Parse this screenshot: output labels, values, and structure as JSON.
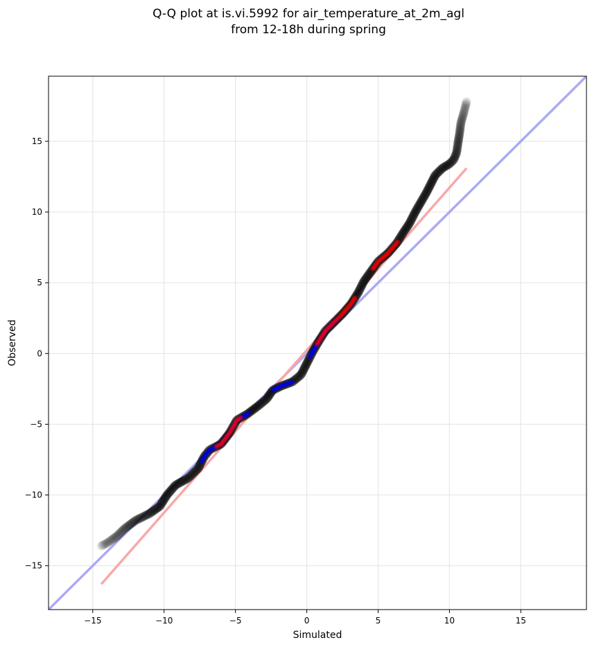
{
  "chart_data": {
    "type": "scatter",
    "title": "Q-Q plot at is.vi.5992 for air_temperature_at_2m_agl",
    "subtitle": "from 12-18h during spring",
    "xlabel": "Simulated",
    "ylabel": "Observed",
    "xlim": [
      -18.1,
      19.6
    ],
    "ylim": [
      -18.1,
      19.6
    ],
    "xticks": [
      -15,
      -10,
      -5,
      0,
      5,
      10,
      15
    ],
    "yticks": [
      -15,
      -10,
      -5,
      0,
      5,
      10,
      15
    ],
    "x_tick_labels": [
      "−15",
      "−10",
      "−5",
      "0",
      "5",
      "10",
      "15"
    ],
    "y_tick_labels": [
      "−15",
      "−10",
      "−5",
      "0",
      "5",
      "10",
      "15"
    ],
    "grid": true,
    "reference_lines": [
      {
        "kind": "identity",
        "color": "#aaaaf5",
        "points": [
          [
            -18.1,
            -18.1
          ],
          [
            19.6,
            19.6
          ]
        ]
      },
      {
        "kind": "fit",
        "color": "#f7a8a8",
        "points": [
          [
            -14.4,
            -16.3
          ],
          [
            11.2,
            13.1
          ]
        ]
      }
    ],
    "qq_curve": [
      [
        -14.4,
        -13.6
      ],
      [
        -14.0,
        -13.4
      ],
      [
        -13.3,
        -12.9
      ],
      [
        -12.8,
        -12.4
      ],
      [
        -12.0,
        -11.8
      ],
      [
        -11.0,
        -11.3
      ],
      [
        -10.3,
        -10.8
      ],
      [
        -9.8,
        -10.0
      ],
      [
        -9.2,
        -9.3
      ],
      [
        -8.3,
        -8.8
      ],
      [
        -7.6,
        -8.1
      ],
      [
        -7.2,
        -7.3
      ],
      [
        -6.8,
        -6.8
      ],
      [
        -6.0,
        -6.4
      ],
      [
        -5.4,
        -5.6
      ],
      [
        -4.9,
        -4.7
      ],
      [
        -4.2,
        -4.3
      ],
      [
        -3.4,
        -3.7
      ],
      [
        -2.8,
        -3.2
      ],
      [
        -2.4,
        -2.6
      ],
      [
        -1.8,
        -2.3
      ],
      [
        -1.0,
        -2.0
      ],
      [
        -0.4,
        -1.5
      ],
      [
        0.0,
        -0.7
      ],
      [
        0.4,
        0.1
      ],
      [
        0.8,
        0.8
      ],
      [
        1.3,
        1.6
      ],
      [
        1.9,
        2.2
      ],
      [
        2.5,
        2.8
      ],
      [
        3.1,
        3.5
      ],
      [
        3.6,
        4.3
      ],
      [
        4.0,
        5.1
      ],
      [
        4.5,
        5.8
      ],
      [
        5.0,
        6.5
      ],
      [
        5.7,
        7.1
      ],
      [
        6.3,
        7.8
      ],
      [
        6.8,
        8.6
      ],
      [
        7.2,
        9.2
      ],
      [
        7.6,
        10.0
      ],
      [
        8.0,
        10.7
      ],
      [
        8.4,
        11.4
      ],
      [
        8.7,
        12.0
      ],
      [
        9.0,
        12.6
      ],
      [
        9.5,
        13.1
      ],
      [
        10.0,
        13.4
      ],
      [
        10.3,
        13.7
      ],
      [
        10.5,
        14.2
      ],
      [
        10.6,
        14.9
      ],
      [
        10.7,
        15.5
      ],
      [
        10.8,
        16.3
      ],
      [
        11.0,
        17.0
      ],
      [
        11.2,
        17.8
      ]
    ],
    "series": [
      {
        "color": "#000000"
      },
      {
        "color": "#0000ff"
      },
      {
        "color": "#ff0000"
      }
    ]
  }
}
